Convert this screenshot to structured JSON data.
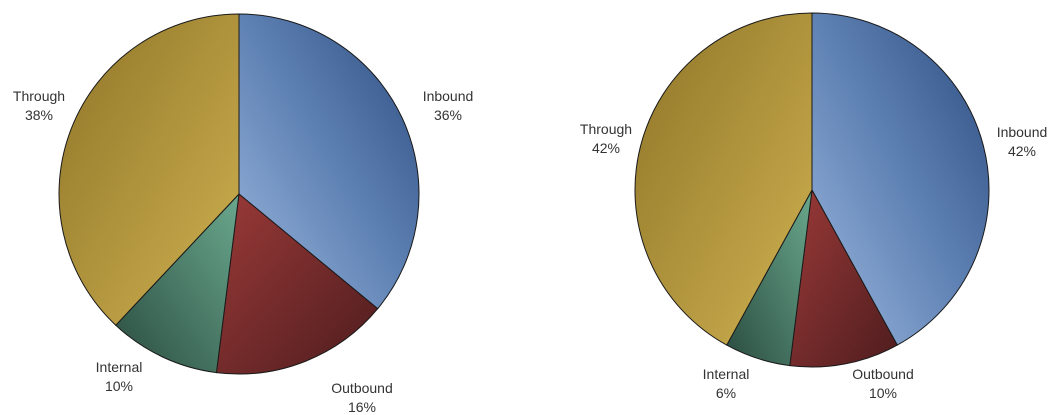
{
  "chart_data": [
    {
      "type": "pie",
      "slices": [
        {
          "name": "Inbound",
          "pct_label": "36%",
          "value": 36,
          "color": "#4a6fa0"
        },
        {
          "name": "Outbound",
          "pct_label": "16%",
          "value": 16,
          "color": "#7a2a2a"
        },
        {
          "name": "Internal",
          "pct_label": "10%",
          "value": 10,
          "color": "#4d8a72"
        },
        {
          "name": "Through",
          "pct_label": "38%",
          "value": 38,
          "color": "#b89a3c"
        }
      ]
    },
    {
      "type": "pie",
      "slices": [
        {
          "name": "Inbound",
          "pct_label": "42%",
          "value": 42,
          "color": "#4a6fa0"
        },
        {
          "name": "Outbound",
          "pct_label": "10%",
          "value": 10,
          "color": "#7a2a2a"
        },
        {
          "name": "Internal",
          "pct_label": "6%",
          "value": 6,
          "color": "#4d8a72"
        },
        {
          "name": "Through",
          "pct_label": "42%",
          "value": 42,
          "color": "#b89a3c"
        }
      ]
    }
  ]
}
